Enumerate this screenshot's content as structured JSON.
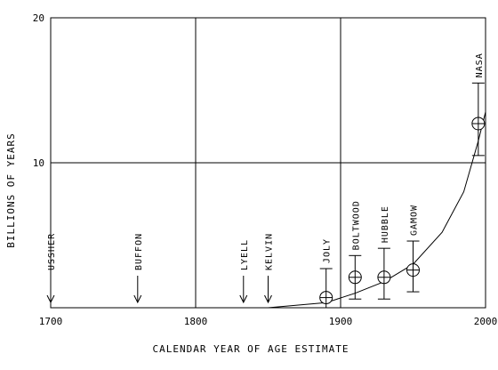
{
  "chart_data": {
    "type": "scatter",
    "title": "",
    "xlabel": "CALENDAR YEAR OF AGE ESTIMATE",
    "ylabel": "BILLIONS OF YEARS",
    "xlim": [
      1700,
      2000
    ],
    "ylim": [
      0,
      20
    ],
    "x_ticks": [
      1700,
      1800,
      1900,
      2000
    ],
    "y_ticks": [
      10,
      20
    ],
    "grid": true,
    "points": [
      {
        "label": "USSHER",
        "x": 1700,
        "y": 6e-06,
        "marker": "arrow"
      },
      {
        "label": "BUFFON",
        "x": 1760,
        "y": 7.5e-05,
        "marker": "arrow"
      },
      {
        "label": "LYELL",
        "x": 1833,
        "y": 0.0003,
        "marker": "arrow"
      },
      {
        "label": "KELVIN",
        "x": 1850,
        "y": 0.0004,
        "marker": "arrow"
      },
      {
        "label": "JOLY",
        "x": 1890,
        "y": 0.7,
        "marker": "circle",
        "err_low": 0,
        "err_high": 2.7
      },
      {
        "label": "BOLTWOOD",
        "x": 1910,
        "y": 2.1,
        "marker": "circle",
        "err_low": 0.6,
        "err_high": 3.6
      },
      {
        "label": "HUBBLE",
        "x": 1930,
        "y": 2.1,
        "marker": "circle",
        "err_low": 0.6,
        "err_high": 4.1
      },
      {
        "label": "GAMOW",
        "x": 1950,
        "y": 2.6,
        "marker": "circle",
        "err_low": 1.1,
        "err_high": 4.6
      },
      {
        "label": "NASA",
        "x": 1995,
        "y": 12.7,
        "marker": "circle",
        "err_low": 10.5,
        "err_high": 15.5
      }
    ],
    "trend": {
      "x": [
        1700,
        1850,
        1890,
        1910,
        1930,
        1950,
        1970,
        1985,
        1995,
        2000
      ],
      "y": [
        0,
        0,
        0.35,
        1.0,
        1.8,
        3.0,
        5.2,
        8.0,
        11.5,
        13.5
      ]
    }
  }
}
